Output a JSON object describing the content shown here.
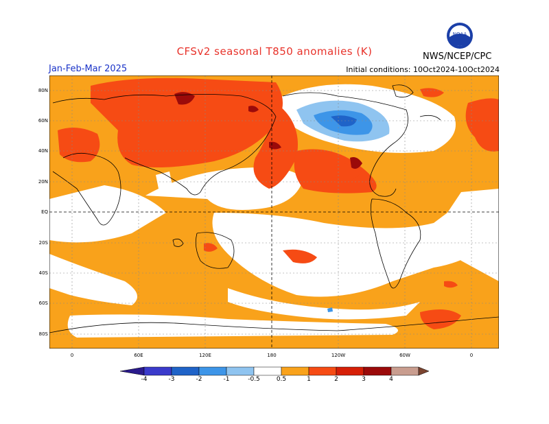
{
  "title": "CFSv2 seasonal T850 anomalies (K)",
  "period": "Jan-Feb-Mar 2025",
  "initial_conditions": "Initial conditions: 10Oct2024-10Oct2024",
  "agency": "NWS/NCEP/CPC",
  "logo_text": "NOAA",
  "lat_labels": [
    "80N",
    "60N",
    "40N",
    "20N",
    "EQ",
    "20S",
    "40S",
    "60S",
    "80S"
  ],
  "lon_labels": [
    "0",
    "60E",
    "120E",
    "180",
    "120W",
    "60W",
    "0"
  ],
  "colorbar": {
    "labels": [
      "-4",
      "-3",
      "-2",
      "-1",
      "-0.5",
      "0.5",
      "1",
      "2",
      "3",
      "4"
    ],
    "colors": [
      "#2a1a8c",
      "#3a3acb",
      "#1f63c8",
      "#3d95e8",
      "#8fc4f0",
      "#ffffff",
      "#f9a21b",
      "#f64b14",
      "#d61f07",
      "#9b0a0a",
      "#c99d8f",
      "#7b4430"
    ]
  }
}
